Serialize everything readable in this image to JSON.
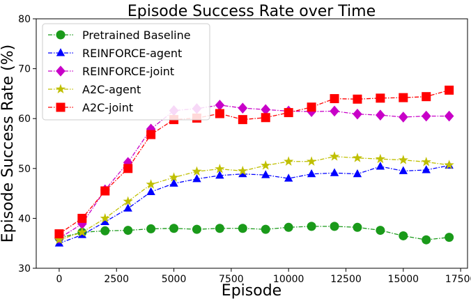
{
  "chart_data": {
    "type": "line",
    "title": "Episode Success Rate over Time",
    "xlabel": "Episode",
    "ylabel": "Episode Success Rate (%)",
    "xlim": [
      -1000,
      17800
    ],
    "ylim": [
      30,
      80
    ],
    "xticks": [
      0,
      2500,
      5000,
      7500,
      10000,
      12500,
      15000,
      17500
    ],
    "yticks": [
      30,
      40,
      50,
      60,
      70,
      80
    ],
    "grid": false,
    "legend_position": "top-left",
    "x": [
      0,
      1000,
      2000,
      3000,
      4000,
      5000,
      6000,
      7000,
      8000,
      9000,
      10000,
      11000,
      12000,
      13000,
      14000,
      15000,
      16000,
      17000
    ],
    "series": [
      {
        "name": "Pretrained Baseline",
        "color": "#1a9a1a",
        "marker": "circle",
        "values": [
          36.1,
          37.2,
          37.5,
          37.6,
          37.9,
          38.0,
          37.8,
          38.0,
          38.0,
          37.8,
          38.2,
          38.4,
          38.4,
          38.2,
          37.6,
          36.5,
          35.7,
          36.2
        ]
      },
      {
        "name": "REINFORCE-agent",
        "color": "#0000ff",
        "marker": "triangle",
        "values": [
          35.0,
          36.7,
          39.3,
          42.0,
          45.3,
          47.0,
          47.9,
          48.6,
          48.9,
          48.7,
          48.0,
          48.9,
          49.1,
          48.9,
          50.4,
          49.5,
          49.7,
          50.6
        ]
      },
      {
        "name": "REINFORCE-joint",
        "color": "#c800c8",
        "marker": "diamond",
        "values": [
          36.0,
          38.9,
          45.7,
          51.2,
          57.9,
          61.6,
          62.0,
          62.7,
          62.1,
          61.8,
          61.5,
          61.4,
          61.5,
          60.9,
          60.7,
          60.3,
          60.5,
          60.5
        ]
      },
      {
        "name": "A2C-agent",
        "color": "#bfbf00",
        "marker": "star",
        "values": [
          35.7,
          37.2,
          40.0,
          43.4,
          46.8,
          48.2,
          49.4,
          49.9,
          49.5,
          50.6,
          51.4,
          51.4,
          52.4,
          52.1,
          51.9,
          51.7,
          51.3,
          50.7
        ]
      },
      {
        "name": "A2C-joint",
        "color": "#ff0000",
        "marker": "square",
        "values": [
          36.9,
          40.0,
          45.5,
          50.0,
          56.8,
          59.8,
          60.1,
          61.0,
          59.8,
          60.2,
          61.2,
          62.3,
          64.0,
          63.9,
          64.1,
          64.2,
          64.4,
          65.7
        ]
      }
    ]
  }
}
